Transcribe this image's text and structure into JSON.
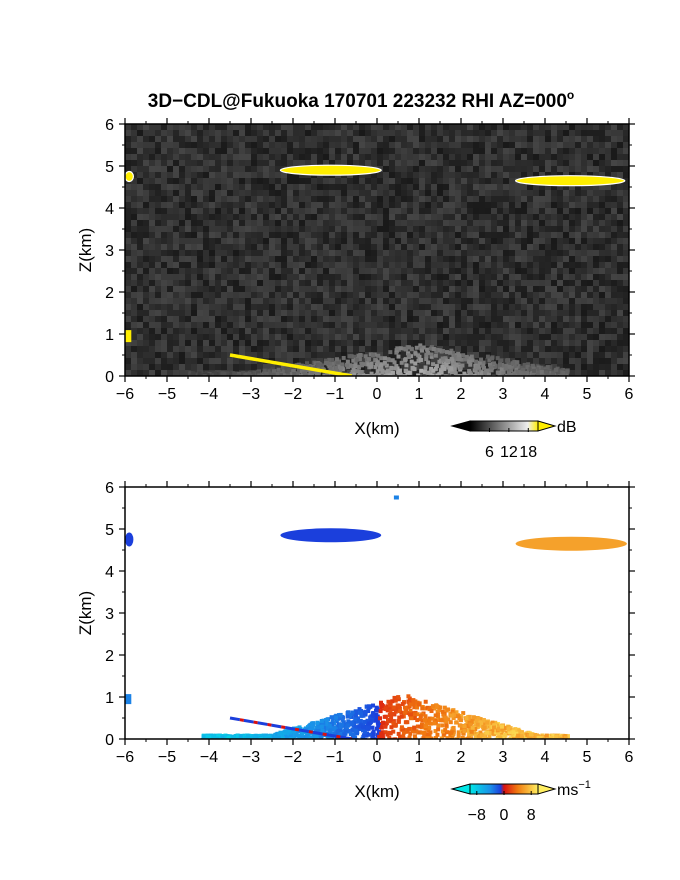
{
  "colors": {
    "background": "#ffffff",
    "echo_highlight": "#ffee00",
    "negative_velocity": "#1b3fdc",
    "positive_velocity": "#f07a10"
  },
  "chart_data": [
    {
      "type": "heatmap",
      "title": "3D−CDL@Fukuoka 170701 223232 RHI AZ=000",
      "title_superscript": "o",
      "xlabel": "X(km)",
      "ylabel": "Z(km)",
      "xlim": [
        -6,
        6
      ],
      "ylim": [
        0,
        6
      ],
      "x_ticks": [
        "−6",
        "−5",
        "−4",
        "−3",
        "−2",
        "−1",
        "0",
        "1",
        "2",
        "3",
        "4",
        "5",
        "6"
      ],
      "y_ticks": [
        "0",
        "1",
        "2",
        "3",
        "4",
        "5",
        "6"
      ],
      "background_field": "noise (dark grey)",
      "colorbar": {
        "unit": "dB",
        "ticks": [
          "6",
          "12",
          "18"
        ],
        "range": [
          0,
          21
        ]
      },
      "features": [
        {
          "name": "cloud layer",
          "x_range": [
            -2.3,
            0.1
          ],
          "z": 4.9,
          "value_dB": 21
        },
        {
          "name": "cloud layer",
          "x_range": [
            3.3,
            5.9
          ],
          "z": 4.65,
          "value_dB": 21
        },
        {
          "name": "cloud edge",
          "x_range": [
            -6.0,
            -5.8
          ],
          "z": 4.75,
          "value_dB": 21
        },
        {
          "name": "near-ground echo",
          "x_range": [
            -6.0,
            -5.85
          ],
          "z": 0.95,
          "value_dB": 21
        },
        {
          "name": "aerosol layer",
          "x_range": [
            -4.5,
            4.5
          ],
          "z_top": 0.8,
          "value_dB": 10
        },
        {
          "name": "surface return",
          "x_range": [
            -3.5,
            -0.6
          ],
          "z_range": [
            0.5,
            0.0
          ],
          "value_dB": 21
        }
      ]
    },
    {
      "type": "heatmap",
      "xlabel": "X(km)",
      "ylabel": "Z(km)",
      "xlim": [
        -6,
        6
      ],
      "ylim": [
        0,
        6
      ],
      "x_ticks": [
        "−6",
        "−5",
        "−4",
        "−3",
        "−2",
        "−1",
        "0",
        "1",
        "2",
        "3",
        "4",
        "5",
        "6"
      ],
      "y_ticks": [
        "0",
        "1",
        "2",
        "3",
        "4",
        "5",
        "6"
      ],
      "colorbar": {
        "unit": "ms",
        "unit_superscript": "−1",
        "ticks": [
          "−8",
          "0",
          "8"
        ],
        "range": [
          -10,
          10
        ]
      },
      "features": [
        {
          "name": "cloud layer",
          "x_range": [
            -2.3,
            0.1
          ],
          "z": 4.85,
          "velocity_ms": -9
        },
        {
          "name": "cloud layer",
          "x_range": [
            3.3,
            5.95
          ],
          "z": 4.65,
          "velocity_ms": 6
        },
        {
          "name": "cloud edge",
          "x_range": [
            -6.0,
            -5.8
          ],
          "z": 4.75,
          "velocity_ms": -3.5
        },
        {
          "name": "near-ground echo",
          "x_range": [
            -6.0,
            -5.85
          ],
          "z": 0.95,
          "velocity_ms": -3.5
        },
        {
          "name": "isolated echo",
          "x": 0.45,
          "z": 5.75,
          "velocity_ms": -3.5
        },
        {
          "name": "boundary layer",
          "x_range": [
            -4.2,
            4.5
          ],
          "z_top": 1.1,
          "velocity_min_ms": -9,
          "velocity_max_ms": 9
        },
        {
          "name": "surface return",
          "x_range": [
            -3.5,
            -0.6
          ],
          "z_range": [
            0.5,
            0.0
          ],
          "velocity_ms": -9
        }
      ]
    }
  ]
}
